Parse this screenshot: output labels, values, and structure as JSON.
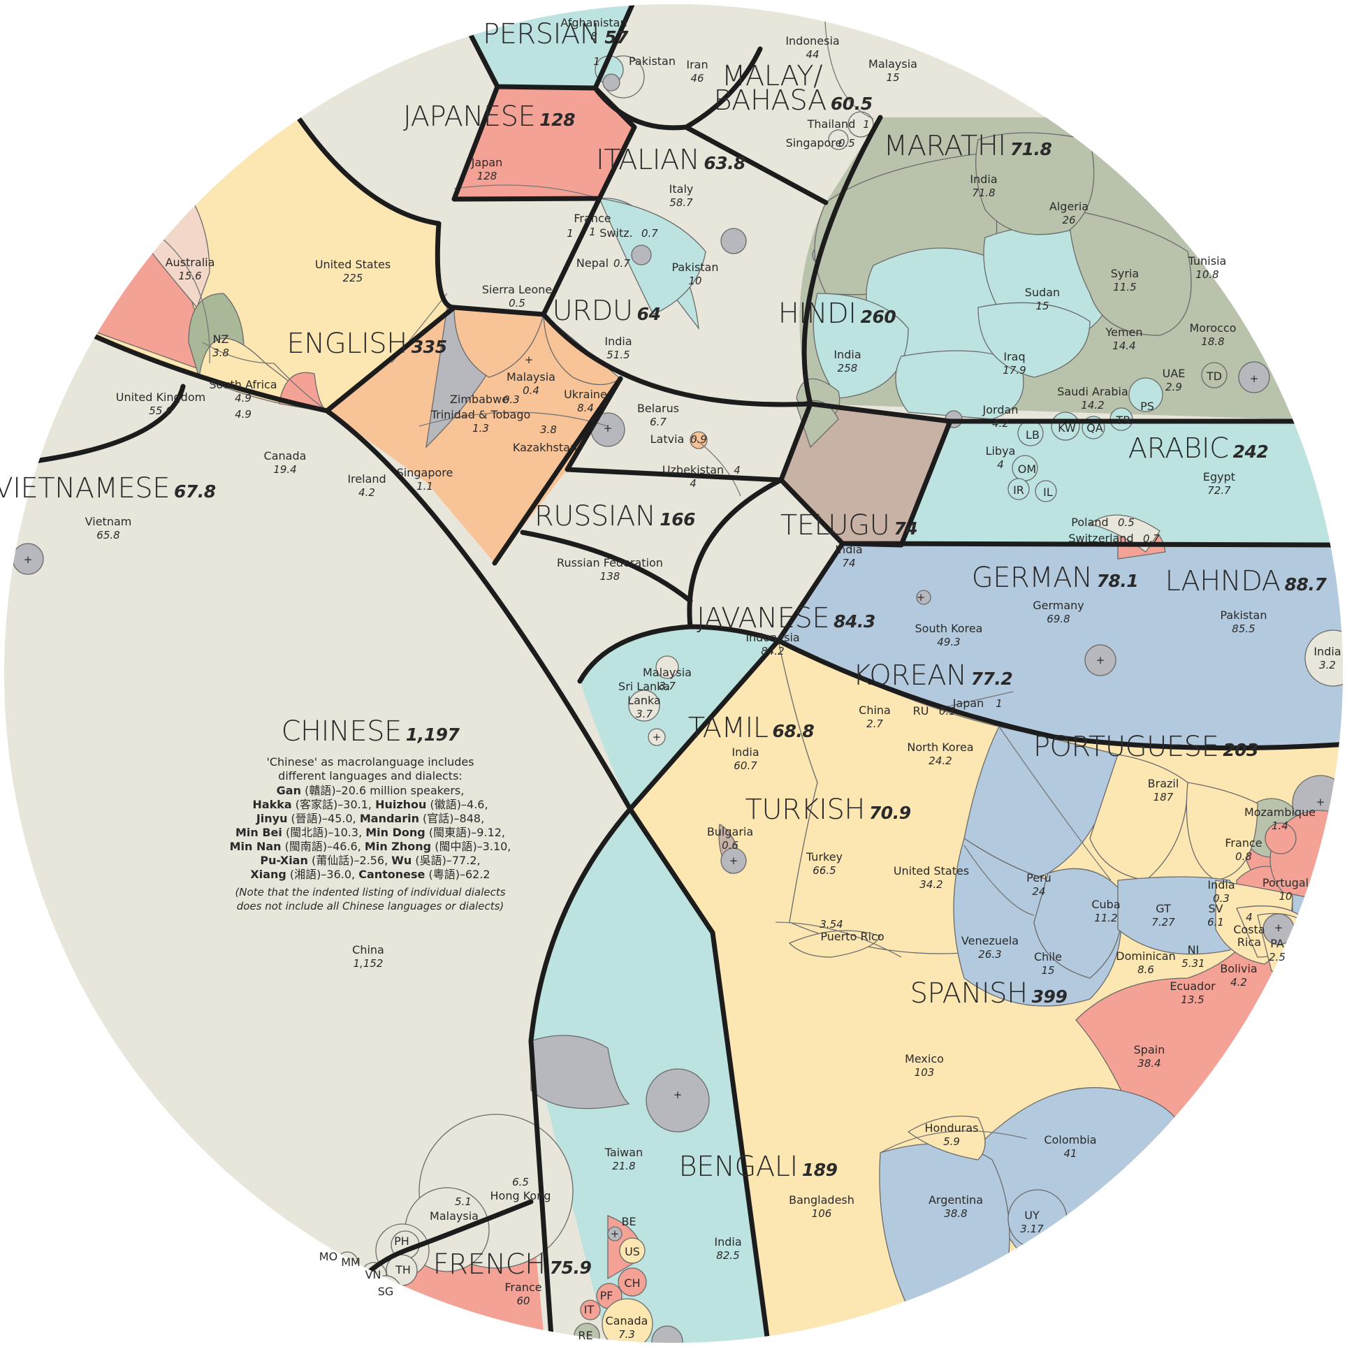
{
  "colors": {
    "beige": "#e8e6da",
    "yellow": "#fce6b2",
    "peach": "#f8c397",
    "salmon": "#f4a295",
    "teal": "#bce3df",
    "blue": "#b2c9de",
    "sage": "#b9c3ab",
    "taupe": "#c8b2a6",
    "grey": "#b7b8bd",
    "pink": "#f3d7c8",
    "olive": "#a9b897",
    "line": "#1c1c1c"
  },
  "languages": [
    {
      "key": "persian",
      "name": "PERSIAN",
      "total": "57",
      "countries": [
        {
          "name": "Iran",
          "value": "46"
        },
        {
          "name": "Afghanistan",
          "value": "8"
        },
        {
          "name": "Pakistan",
          "value": "1"
        },
        {
          "name": "+",
          "value": ""
        }
      ]
    },
    {
      "key": "malay",
      "name": "MALAY/",
      "name2": "BAHASA",
      "total": "60.5",
      "countries": [
        {
          "name": "Indonesia",
          "value": "44"
        },
        {
          "name": "Malaysia",
          "value": "15"
        },
        {
          "name": "Thailand",
          "value": "1"
        },
        {
          "name": "Singapore",
          "value": "0.5"
        }
      ]
    },
    {
      "key": "japanese",
      "name": "JAPANESE",
      "total": "128",
      "countries": [
        {
          "name": "Japan",
          "value": "128"
        }
      ]
    },
    {
      "key": "italian",
      "name": "ITALIAN",
      "total": "63.8",
      "countries": [
        {
          "name": "Italy",
          "value": "58.7"
        },
        {
          "name": "France",
          "value": "1"
        },
        {
          "name": "Switz.",
          "value": "0.7"
        },
        {
          "name": "+",
          "value": ""
        }
      ]
    },
    {
      "key": "marathi",
      "name": "MARATHI",
      "total": "71.8",
      "countries": [
        {
          "name": "India",
          "value": "71.8"
        }
      ]
    },
    {
      "key": "english",
      "name": "ENGLISH",
      "total": "335",
      "countries": [
        {
          "name": "United States",
          "value": "225"
        },
        {
          "name": "United Kingdom",
          "value": "55.6"
        },
        {
          "name": "Canada",
          "value": "19.4"
        },
        {
          "name": "Australia",
          "value": "15.6"
        },
        {
          "name": "South Africa",
          "value": "4.9"
        },
        {
          "name": "Ireland",
          "value": "4.2"
        },
        {
          "name": "NZ",
          "value": "3.8"
        },
        {
          "name": "Trinidad & Tobago",
          "value": "1.3"
        },
        {
          "name": "Singapore",
          "value": "1.1"
        },
        {
          "name": "Sierra Leone",
          "value": "0.5"
        },
        {
          "name": "Malaysia",
          "value": "0.4"
        },
        {
          "name": "Zimbabwe",
          "value": "0.3"
        },
        {
          "name": "+",
          "value": ""
        }
      ]
    },
    {
      "key": "urdu",
      "name": "URDU",
      "total": "64",
      "countries": [
        {
          "name": "India",
          "value": "51.5"
        },
        {
          "name": "Pakistan",
          "value": "10"
        },
        {
          "name": "Nepal",
          "value": "0.7"
        },
        {
          "name": "+",
          "value": ""
        }
      ]
    },
    {
      "key": "hindi",
      "name": "HINDI",
      "total": "260",
      "countries": [
        {
          "name": "India",
          "value": "258"
        },
        {
          "name": "+",
          "value": ""
        }
      ]
    },
    {
      "key": "arabic",
      "name": "ARABIC",
      "total": "242",
      "countries": [
        {
          "name": "Egypt",
          "value": "72.7"
        },
        {
          "name": "Algeria",
          "value": "26"
        },
        {
          "name": "Morocco",
          "value": "18.8"
        },
        {
          "name": "Iraq",
          "value": "17.9"
        },
        {
          "name": "Sudan",
          "value": "15"
        },
        {
          "name": "Yemen",
          "value": "14.4"
        },
        {
          "name": "Saudi Arabia",
          "value": "14.2"
        },
        {
          "name": "Syria",
          "value": "11.5"
        },
        {
          "name": "Tunisia",
          "value": "10.8"
        },
        {
          "name": "Jordan",
          "value": "4.2"
        },
        {
          "name": "Libya",
          "value": "4"
        },
        {
          "name": "UAE",
          "value": "2.9"
        },
        {
          "name": "TD",
          "value": ""
        },
        {
          "name": "PS",
          "value": ""
        },
        {
          "name": "TR",
          "value": ""
        },
        {
          "name": "LB",
          "value": ""
        },
        {
          "name": "KW",
          "value": ""
        },
        {
          "name": "QA",
          "value": ""
        },
        {
          "name": "OM",
          "value": ""
        },
        {
          "name": "IR",
          "value": ""
        },
        {
          "name": "IL",
          "value": ""
        },
        {
          "name": "+",
          "value": ""
        }
      ]
    },
    {
      "key": "russian",
      "name": "RUSSIAN",
      "total": "166",
      "countries": [
        {
          "name": "Russian Federation",
          "value": "138"
        },
        {
          "name": "Ukraine",
          "value": "8.4"
        },
        {
          "name": "Belarus",
          "value": "6.7"
        },
        {
          "name": "Uzbekistan",
          "value": "4"
        },
        {
          "name": "Kazakhstan",
          "value": "3.8"
        },
        {
          "name": "Latvia",
          "value": "0.9"
        },
        {
          "name": "+",
          "value": ""
        }
      ]
    },
    {
      "key": "vietnamese",
      "name": "VIETNAMESE",
      "total": "67.8",
      "countries": [
        {
          "name": "Vietnam",
          "value": "65.8"
        },
        {
          "name": "+",
          "value": ""
        }
      ]
    },
    {
      "key": "telugu",
      "name": "TELUGU",
      "total": "74",
      "countries": [
        {
          "name": "India",
          "value": "74"
        }
      ]
    },
    {
      "key": "german",
      "name": "GERMAN",
      "total": "78.1",
      "countries": [
        {
          "name": "Germany",
          "value": "69.8"
        },
        {
          "name": "Switzerland",
          "value": "0.7"
        },
        {
          "name": "Poland",
          "value": "0.5"
        },
        {
          "name": "+",
          "value": ""
        }
      ]
    },
    {
      "key": "lahnda",
      "name": "LAHNDA",
      "total": "88.7",
      "countries": [
        {
          "name": "Pakistan",
          "value": "85.5"
        },
        {
          "name": "India",
          "value": "3.2"
        }
      ]
    },
    {
      "key": "javanese",
      "name": "JAVANESE",
      "total": "84.3",
      "countries": [
        {
          "name": "Indonesia",
          "value": "84.2"
        },
        {
          "name": "+",
          "value": ""
        }
      ]
    },
    {
      "key": "korean",
      "name": "KOREAN",
      "total": "77.2",
      "countries": [
        {
          "name": "South Korea",
          "value": "49.3"
        },
        {
          "name": "North Korea",
          "value": "24.2"
        },
        {
          "name": "China",
          "value": "2.7"
        },
        {
          "name": "Japan",
          "value": "1"
        },
        {
          "name": "RU",
          "value": "0.1"
        }
      ]
    },
    {
      "key": "tamil",
      "name": "TAMIL",
      "total": "68.8",
      "countries": [
        {
          "name": "India",
          "value": "60.7"
        },
        {
          "name": "Malaysia",
          "value": "3.7"
        },
        {
          "name": "Sri Lanka",
          "value": "3.7"
        },
        {
          "name": "+",
          "value": ""
        }
      ]
    },
    {
      "key": "chinese",
      "name": "CHINESE",
      "total": "1,197",
      "countries": [
        {
          "name": "China",
          "value": "1,152"
        },
        {
          "name": "Taiwan",
          "value": "21.8"
        },
        {
          "name": "Hong Kong",
          "value": "6.5"
        },
        {
          "name": "Malaysia",
          "value": "5.1"
        },
        {
          "name": "PH",
          "value": ""
        },
        {
          "name": "TH",
          "value": ""
        },
        {
          "name": "VN",
          "value": ""
        },
        {
          "name": "MM",
          "value": ""
        },
        {
          "name": "MO",
          "value": ""
        },
        {
          "name": "SG",
          "value": ""
        },
        {
          "name": "+",
          "value": ""
        }
      ]
    },
    {
      "key": "portuguese",
      "name": "PORTUGUESE",
      "total": "203",
      "countries": [
        {
          "name": "Brazil",
          "value": "187"
        },
        {
          "name": "Portugal",
          "value": "10"
        },
        {
          "name": "Mozambique",
          "value": "1.4"
        },
        {
          "name": "France",
          "value": "0.8"
        },
        {
          "name": "India",
          "value": "0.3"
        },
        {
          "name": "+",
          "value": ""
        }
      ]
    },
    {
      "key": "turkish",
      "name": "TURKISH",
      "total": "70.9",
      "countries": [
        {
          "name": "Turkey",
          "value": "66.5"
        },
        {
          "name": "Bulgaria",
          "value": "0.6"
        },
        {
          "name": "+",
          "value": ""
        }
      ]
    },
    {
      "key": "spanish",
      "name": "SPANISH",
      "total": "399",
      "countries": [
        {
          "name": "Mexico",
          "value": "103"
        },
        {
          "name": "Colombia",
          "value": "41"
        },
        {
          "name": "Argentina",
          "value": "38.8"
        },
        {
          "name": "Spain",
          "value": "38.4"
        },
        {
          "name": "United States",
          "value": "34.2"
        },
        {
          "name": "Venezuela",
          "value": "26.3"
        },
        {
          "name": "Peru",
          "value": "24"
        },
        {
          "name": "Chile",
          "value": "15"
        },
        {
          "name": "Ecuador",
          "value": "13.5"
        },
        {
          "name": "Cuba",
          "value": "11.2"
        },
        {
          "name": "Dominican",
          "value": "8.6"
        },
        {
          "name": "GT",
          "value": "7.27"
        },
        {
          "name": "SV",
          "value": "6.1"
        },
        {
          "name": "Honduras",
          "value": "5.9"
        },
        {
          "name": "NI",
          "value": "5.31"
        },
        {
          "name": "Bolivia",
          "value": "4.2"
        },
        {
          "name": "Costa Rica",
          "value": "4"
        },
        {
          "name": "Puerto Rico",
          "value": "3.54"
        },
        {
          "name": "UY",
          "value": "3.17"
        },
        {
          "name": "PA",
          "value": "2.5"
        },
        {
          "name": "+",
          "value": ""
        }
      ]
    },
    {
      "key": "bengali",
      "name": "BENGALI",
      "total": "189",
      "countries": [
        {
          "name": "Bangladesh",
          "value": "106"
        },
        {
          "name": "India",
          "value": "82.5"
        }
      ]
    },
    {
      "key": "french",
      "name": "FRENCH",
      "total": "75.9",
      "countries": [
        {
          "name": "France",
          "value": "60"
        },
        {
          "name": "Canada",
          "value": "7.3"
        },
        {
          "name": "BE",
          "value": ""
        },
        {
          "name": "US",
          "value": ""
        },
        {
          "name": "CH",
          "value": ""
        },
        {
          "name": "PF",
          "value": ""
        },
        {
          "name": "IT",
          "value": ""
        },
        {
          "name": "RE",
          "value": ""
        },
        {
          "name": "+",
          "value": ""
        }
      ]
    }
  ],
  "chinese_note": {
    "line1": "'Chinese' as macrolanguage includes",
    "line2": "different languages and dialects:",
    "dialects": [
      [
        {
          "b": "Gan",
          "t": " (贛語)–20.6 million speakers,"
        }
      ],
      [
        {
          "b": "Hakka",
          "t": " (客家話)–30.1, "
        },
        {
          "b": "Huizhou",
          "t": " (徽語)–4.6,"
        }
      ],
      [
        {
          "b": "Jinyu",
          "t": " (晉語)–45.0, "
        },
        {
          "b": "Mandarin",
          "t": " (官話)–848,"
        }
      ],
      [
        {
          "b": "Min Bei",
          "t": " (閩北語)–10.3, "
        },
        {
          "b": "Min Dong",
          "t": " (閩東語)–9.12,"
        }
      ],
      [
        {
          "b": "Min Nan",
          "t": " (閩南語)–46.6, "
        },
        {
          "b": "Min Zhong",
          "t": " (閩中語)–3.10,"
        }
      ],
      [
        {
          "b": "Pu-Xian",
          "t": " (莆仙話)–2.56, "
        },
        {
          "b": "Wu",
          "t": " (吳語)–77.2,"
        }
      ],
      [
        {
          "b": "Xiang",
          "t": " (湘語)–36.0, "
        },
        {
          "b": "Cantonese",
          "t": " (粵語)–62.2"
        }
      ]
    ],
    "foot1": "(Note that the indented listing of individual dialects",
    "foot2": "does not include all Chinese languages or dialects)"
  }
}
